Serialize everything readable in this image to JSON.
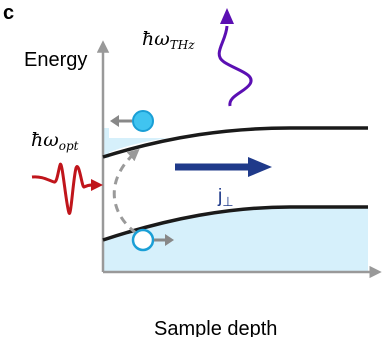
{
  "panel_label": "c",
  "axes": {
    "y_label": "Energy",
    "x_label": "Sample depth"
  },
  "labels": {
    "thz_emission": "ħω",
    "thz_subscript": "THz",
    "optical_excitation": "ħω",
    "optical_subscript": "opt",
    "current": "j",
    "current_subscript": "⊥"
  },
  "colors": {
    "axis": "#999999",
    "band_edge": "#1a1a1a",
    "fill": "#d6f0fb",
    "electron": "#40c4f0",
    "electron_stroke": "#1a9fd6",
    "hole_stroke": "#1a9fd6",
    "thz_wave": "#5b0fb3",
    "optical_wave": "#c0151b",
    "current_arrow": "#1f3a8a",
    "transition_arrow": "#9a9a9a"
  }
}
